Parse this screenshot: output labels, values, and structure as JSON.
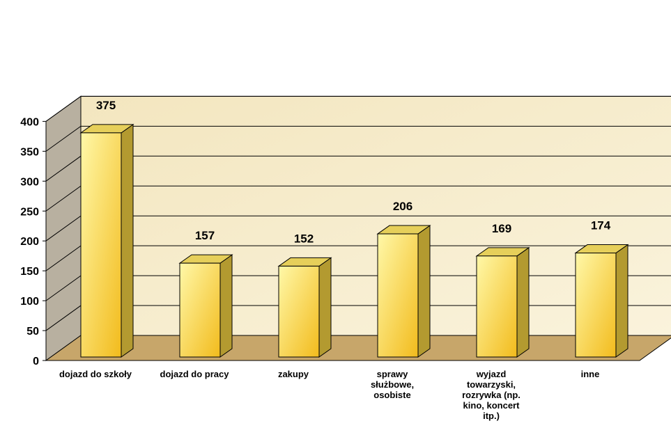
{
  "chart_data": {
    "type": "bar",
    "title": "",
    "xlabel": "",
    "ylabel": "",
    "categories": [
      "dojazd do szkoły",
      "dojazd do pracy",
      "zakupy",
      "sprawy służbowe, osobiste",
      "wyjazd towarzyski, rozrywka (np. kino, koncert itp.)",
      "inne"
    ],
    "category_lines": [
      [
        "dojazd do szkoły"
      ],
      [
        "dojazd do pracy"
      ],
      [
        "zakupy"
      ],
      [
        "sprawy",
        "służbowe,",
        "osobiste"
      ],
      [
        "wyjazd",
        "towarzyski,",
        "rozrywka (np.",
        "kino, koncert",
        "itp.)"
      ],
      [
        "inne"
      ]
    ],
    "values": [
      375,
      157,
      152,
      206,
      169,
      174
    ],
    "data_labels": [
      "375",
      "157",
      "152",
      "206",
      "169",
      "174"
    ],
    "ylim": [
      0,
      400
    ],
    "yticks": [
      0,
      50,
      100,
      150,
      200,
      250,
      300,
      350,
      400
    ],
    "grid": true,
    "legend": "none",
    "colors": {
      "bar_front_light": "#fff8a8",
      "bar_front_dark": "#f2bb1c",
      "bar_side": "#b39a30",
      "bar_top": "#e6cf5a",
      "back_wall": "#f6ebc8",
      "side_wall": "#b8b0a0",
      "floor": "#c7a66a",
      "grid": "#000000"
    }
  }
}
